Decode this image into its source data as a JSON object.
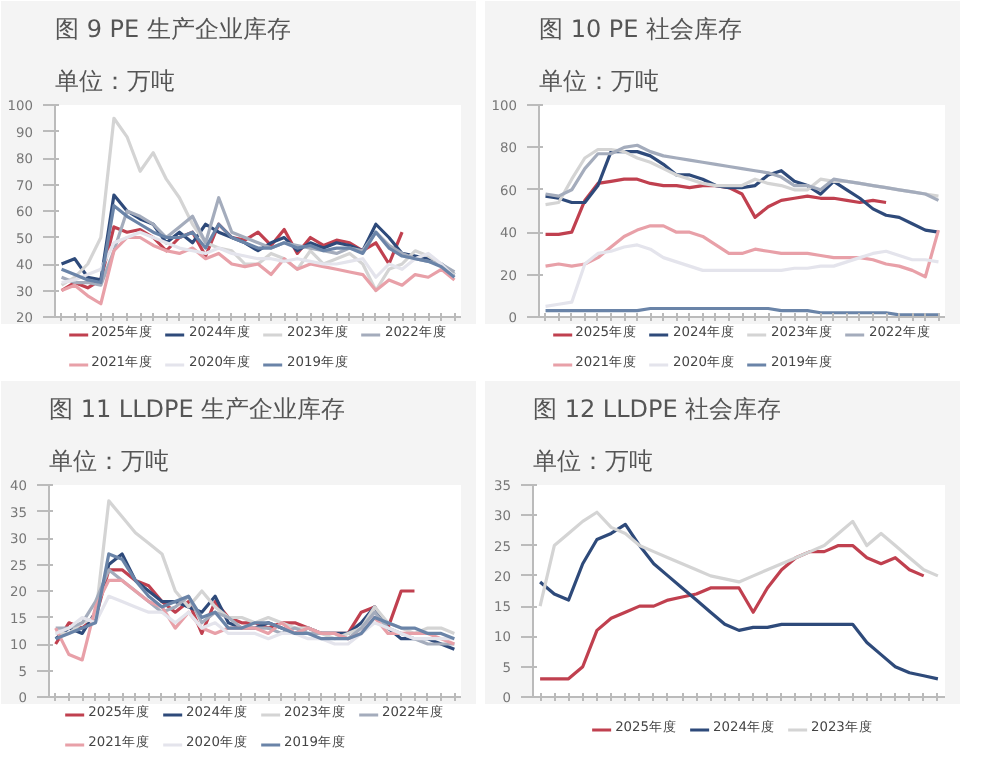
{
  "chart_data": [
    {
      "type": "line",
      "title": "图 9 PE 生产企业库存",
      "subtitle": "单位：万吨",
      "legend": "bottom",
      "tick_labels": "y",
      "categories": [
        null,
        null,
        null,
        null,
        null,
        null,
        null,
        null,
        null,
        null,
        null,
        null,
        null,
        null,
        null,
        null,
        null,
        null,
        null,
        null,
        null,
        null,
        null,
        null,
        null,
        null,
        null,
        null,
        null,
        null,
        null
      ],
      "ylim": [
        20,
        100
      ],
      "yticks": [
        20,
        30,
        40,
        50,
        60,
        70,
        80,
        90,
        100
      ],
      "series": [
        {
          "name": "2025年度",
          "color": "#c0404f",
          "values": [
            30,
            33,
            31,
            34,
            54,
            52,
            53,
            50,
            45,
            50,
            52,
            43,
            55,
            50,
            49,
            52,
            47,
            53,
            44,
            50,
            47,
            49,
            48,
            45,
            48,
            40,
            52,
            null,
            null,
            null,
            null
          ]
        },
        {
          "name": "2024年度",
          "color": "#2e4a7a",
          "values": [
            40,
            42,
            35,
            34,
            66,
            60,
            57,
            55,
            48,
            52,
            48,
            55,
            52,
            50,
            48,
            45,
            48,
            50,
            45,
            48,
            46,
            48,
            47,
            45,
            55,
            50,
            44,
            43,
            42,
            40,
            36
          ]
        },
        {
          "name": "2023年度",
          "color": "#d4d4d4",
          "values": [
            32,
            35,
            40,
            50,
            95,
            88,
            75,
            82,
            72,
            65,
            55,
            48,
            46,
            45,
            40,
            40,
            44,
            42,
            38,
            45,
            40,
            42,
            44,
            40,
            30,
            38,
            40,
            45,
            43,
            40,
            36
          ]
        },
        {
          "name": "2022年度",
          "color": "#a4acbc",
          "values": [
            35,
            33,
            33,
            32,
            45,
            60,
            58,
            55,
            50,
            54,
            58,
            48,
            65,
            52,
            50,
            48,
            46,
            48,
            47,
            46,
            45,
            44,
            46,
            45,
            52,
            47,
            44,
            42,
            41,
            40,
            37
          ]
        },
        {
          "name": "2021年度",
          "color": "#e8a0a8",
          "values": [
            30,
            32,
            28,
            25,
            45,
            50,
            50,
            47,
            45,
            44,
            46,
            42,
            44,
            40,
            39,
            40,
            36,
            42,
            38,
            40,
            39,
            38,
            37,
            36,
            30,
            34,
            32,
            36,
            35,
            38,
            34
          ]
        },
        {
          "name": "2020年度",
          "color": "#e4e4ec",
          "values": [
            33,
            34,
            36,
            38,
            48,
            50,
            52,
            50,
            48,
            46,
            45,
            44,
            46,
            44,
            43,
            42,
            42,
            41,
            42,
            41,
            40,
            40,
            41,
            42,
            35,
            40,
            38,
            42,
            44,
            40,
            35
          ]
        },
        {
          "name": "2019年度",
          "color": "#6a84a8",
          "values": [
            38,
            36,
            34,
            33,
            62,
            58,
            55,
            52,
            50,
            50,
            52,
            46,
            55,
            50,
            48,
            46,
            46,
            48,
            46,
            47,
            45,
            46,
            46,
            44,
            52,
            46,
            43,
            42,
            41,
            39,
            35
          ]
        }
      ]
    },
    {
      "type": "line",
      "title": "图 10 PE 社会库存",
      "subtitle": "单位：万吨",
      "legend": "bottom",
      "tick_labels": "y",
      "categories": [
        null,
        null,
        null,
        null,
        null,
        null,
        null,
        null,
        null,
        null,
        null,
        null,
        null,
        null,
        null,
        null,
        null,
        null,
        null,
        null,
        null,
        null,
        null,
        null,
        null,
        null,
        null,
        null,
        null,
        null,
        null
      ],
      "ylim": [
        0,
        100
      ],
      "yticks": [
        0,
        20,
        40,
        60,
        80,
        100
      ],
      "series": [
        {
          "name": "2025年度",
          "color": "#c0404f",
          "values": [
            39,
            39,
            40,
            55,
            63,
            64,
            65,
            65,
            63,
            62,
            62,
            61,
            62,
            62,
            61,
            58,
            47,
            52,
            55,
            56,
            57,
            56,
            56,
            55,
            54,
            55,
            54,
            null,
            null,
            null,
            null
          ]
        },
        {
          "name": "2024年度",
          "color": "#2e4a7a",
          "values": [
            57,
            56,
            54,
            54,
            62,
            78,
            78,
            78,
            76,
            72,
            67,
            67,
            65,
            62,
            61,
            61,
            62,
            67,
            69,
            64,
            62,
            58,
            64,
            60,
            56,
            51,
            48,
            47,
            44,
            41,
            40
          ]
        },
        {
          "name": "2023年度",
          "color": "#d4d4d4",
          "values": [
            53,
            54,
            65,
            75,
            79,
            79,
            78,
            75,
            73,
            70,
            67,
            65,
            63,
            62,
            62,
            62,
            65,
            63,
            62,
            60,
            60,
            65,
            64,
            64,
            63,
            62,
            61,
            60,
            59,
            58,
            57
          ]
        },
        {
          "name": "2022年度",
          "color": "#a4acbc",
          "values": [
            58,
            57,
            60,
            70,
            77,
            77,
            80,
            81,
            78,
            76,
            75,
            74,
            73,
            72,
            71,
            70,
            69,
            68,
            66,
            62,
            62,
            60,
            65,
            64,
            63,
            62,
            61,
            60,
            59,
            58,
            55
          ]
        },
        {
          "name": "2021年度",
          "color": "#e8a0a8",
          "values": [
            24,
            25,
            24,
            25,
            28,
            33,
            38,
            41,
            43,
            43,
            40,
            40,
            38,
            34,
            30,
            30,
            32,
            31,
            30,
            30,
            30,
            29,
            28,
            28,
            28,
            27,
            25,
            24,
            22,
            19,
            41
          ]
        },
        {
          "name": "2020年度",
          "color": "#e4e4ec",
          "values": [
            5,
            6,
            7,
            25,
            30,
            31,
            33,
            34,
            32,
            28,
            26,
            24,
            22,
            22,
            22,
            22,
            22,
            22,
            22,
            23,
            23,
            24,
            24,
            26,
            28,
            30,
            31,
            29,
            27,
            27,
            26
          ]
        },
        {
          "name": "2019年度",
          "color": "#6a84a8",
          "values": [
            3,
            3,
            3,
            3,
            3,
            3,
            3,
            3,
            4,
            4,
            4,
            4,
            4,
            4,
            4,
            4,
            4,
            4,
            3,
            3,
            3,
            2,
            2,
            2,
            2,
            2,
            2,
            1,
            1,
            1,
            1
          ]
        }
      ]
    },
    {
      "type": "line",
      "title": "图 11 LLDPE 生产企业库存",
      "subtitle": "单位：万吨",
      "legend": "bottom",
      "tick_labels": "y",
      "categories": [
        null,
        null,
        null,
        null,
        null,
        null,
        null,
        null,
        null,
        null,
        null,
        null,
        null,
        null,
        null,
        null,
        null,
        null,
        null,
        null,
        null,
        null,
        null,
        null,
        null,
        null,
        null,
        null,
        null,
        null,
        null
      ],
      "ylim": [
        0,
        40
      ],
      "yticks": [
        0,
        5,
        10,
        15,
        20,
        25,
        30,
        35,
        40
      ],
      "series": [
        {
          "name": "2025年度",
          "color": "#c0404f",
          "values": [
            10,
            14,
            13,
            15,
            24,
            24,
            22,
            21,
            18,
            16,
            18,
            12,
            18,
            15,
            14,
            14,
            13,
            14,
            14,
            13,
            12,
            12,
            12,
            16,
            17,
            13,
            20,
            20,
            null,
            null,
            null
          ]
        },
        {
          "name": "2024年度",
          "color": "#2e4a7a",
          "values": [
            11,
            13,
            12,
            16,
            25,
            27,
            22,
            20,
            18,
            18,
            17,
            16,
            19,
            14,
            13,
            13,
            14,
            13,
            12,
            13,
            12,
            12,
            12,
            14,
            17,
            13,
            11,
            11,
            11,
            10,
            9
          ]
        },
        {
          "name": "2023年度",
          "color": "#d4d4d4",
          "values": [
            12,
            12,
            14,
            15,
            37,
            34,
            31,
            29,
            27,
            20,
            17,
            20,
            17,
            15,
            15,
            14,
            15,
            14,
            13,
            13,
            12,
            11,
            12,
            13,
            17,
            14,
            13,
            12,
            13,
            13,
            12
          ]
        },
        {
          "name": "2022年度",
          "color": "#a4acbc",
          "values": [
            13,
            13,
            14,
            18,
            24,
            22,
            20,
            18,
            16,
            17,
            19,
            14,
            16,
            15,
            13,
            13,
            13,
            12,
            13,
            12,
            12,
            12,
            11,
            13,
            16,
            13,
            12,
            11,
            10,
            10,
            10
          ]
        },
        {
          "name": "2021年度",
          "color": "#e8a0a8",
          "values": [
            13,
            8,
            7,
            17,
            22,
            22,
            20,
            18,
            17,
            13,
            16,
            13,
            12,
            13,
            13,
            13,
            12,
            14,
            12,
            13,
            12,
            12,
            11,
            12,
            15,
            12,
            12,
            12,
            12,
            11,
            10
          ]
        },
        {
          "name": "2020年度",
          "color": "#e4e4ec",
          "values": [
            12,
            13,
            15,
            14,
            19,
            18,
            17,
            16,
            16,
            14,
            16,
            13,
            14,
            12,
            12,
            12,
            11,
            12,
            12,
            11,
            11,
            10,
            10,
            12,
            14,
            13,
            12,
            11,
            11,
            11,
            11
          ]
        },
        {
          "name": "2019年度",
          "color": "#6a84a8",
          "values": [
            11,
            12,
            13,
            14,
            27,
            26,
            22,
            19,
            17,
            18,
            19,
            15,
            16,
            13,
            13,
            14,
            14,
            13,
            12,
            12,
            11,
            11,
            11,
            12,
            15,
            14,
            13,
            13,
            12,
            12,
            11
          ]
        }
      ]
    },
    {
      "type": "line",
      "title": "图 12 LLDPE 社会库存",
      "subtitle": "单位：万吨",
      "legend": "bottom",
      "tick_labels": "y",
      "categories": [
        null,
        null,
        null,
        null,
        null,
        null,
        null,
        null,
        null,
        null,
        null,
        null,
        null,
        null,
        null,
        null,
        null,
        null,
        null,
        null,
        null,
        null,
        null,
        null,
        null,
        null,
        null,
        null,
        null
      ],
      "ylim": [
        0,
        35
      ],
      "yticks": [
        0,
        5,
        10,
        15,
        20,
        25,
        30,
        35
      ],
      "series": [
        {
          "name": "2025年度",
          "color": "#c0404f",
          "values": [
            3,
            3,
            3,
            5,
            11,
            13,
            14,
            15,
            15,
            16,
            16.5,
            17,
            18,
            18,
            18,
            14,
            18,
            21,
            23,
            24,
            24,
            25,
            25,
            23,
            22,
            23,
            21,
            20,
            null
          ]
        },
        {
          "name": "2024年度",
          "color": "#2e4a7a",
          "values": [
            19,
            17,
            16,
            22,
            26,
            27,
            28.5,
            25,
            22,
            20,
            18,
            16,
            14,
            12,
            11,
            11.5,
            11.5,
            12,
            12,
            12,
            12,
            12,
            12,
            9,
            7,
            5,
            4,
            3.5,
            3
          ]
        },
        {
          "name": "2023年度",
          "color": "#d4d4d4",
          "values": [
            15,
            25,
            27,
            29,
            30.5,
            28,
            27,
            25,
            24,
            23,
            22,
            21,
            20,
            19.5,
            19,
            20,
            21,
            22,
            23,
            24,
            25,
            27,
            29,
            25,
            27,
            25,
            23,
            21,
            20
          ]
        }
      ]
    }
  ]
}
